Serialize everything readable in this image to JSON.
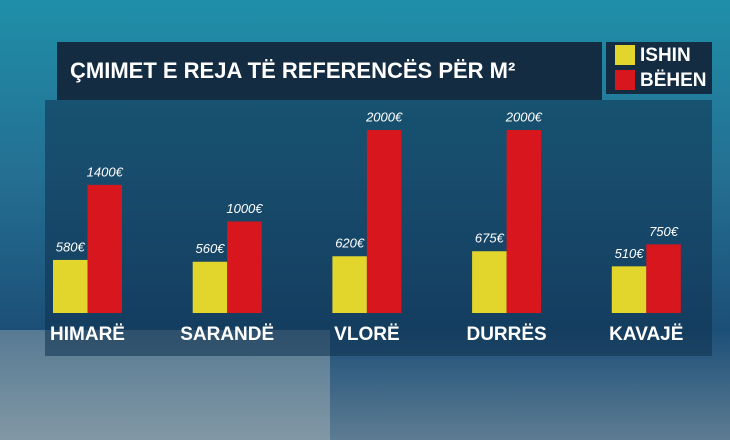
{
  "chart_data": {
    "type": "bar",
    "title": "ÇMIMET E REJA TË REFERENCËS PËR M²",
    "categories": [
      "HIMARË",
      "SARANDË",
      "VLORË",
      "DURRËS",
      "KAVAJË"
    ],
    "series": [
      {
        "name": "ISHIN",
        "color": "#e2d62c",
        "values": [
          580,
          560,
          620,
          675,
          510
        ],
        "value_labels": [
          "580€",
          "560€",
          "620€",
          "675€",
          "510€"
        ]
      },
      {
        "name": "BËHEN",
        "color": "#d8161e",
        "values": [
          1400,
          1000,
          2000,
          2000,
          750
        ],
        "value_labels": [
          "1400€",
          "1000€",
          "2000€",
          "2000€",
          "750€"
        ]
      }
    ],
    "legend": "top-right"
  }
}
